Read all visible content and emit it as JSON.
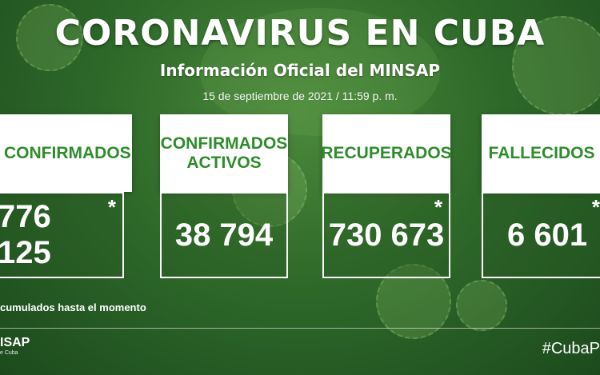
{
  "header": {
    "title": "CORONAVIRUS EN CUBA",
    "subtitle": "Información Oficial del MINSAP",
    "date": "15 de septiembre de 2021 / 11:59 p. m."
  },
  "cards": [
    {
      "label": "CONFIRMADOS",
      "value": "776 125",
      "asterisk": "*"
    },
    {
      "label": "CONFIRMADOS ACTIVOS",
      "value": "38 794",
      "asterisk": ""
    },
    {
      "label": "RECUPERADOS",
      "value": "730 673",
      "asterisk": "*"
    },
    {
      "label": "FALLECIDOS",
      "value": "6 601",
      "asterisk": "*"
    }
  ],
  "footnote": "cumulados hasta el momento",
  "footer": {
    "logo_text": "ISAP",
    "logo_subtext": "e Cuba",
    "hashtag": "#CubaP"
  },
  "colors": {
    "accent_green": "#2e8c2c",
    "background": "#2f6a2a"
  }
}
